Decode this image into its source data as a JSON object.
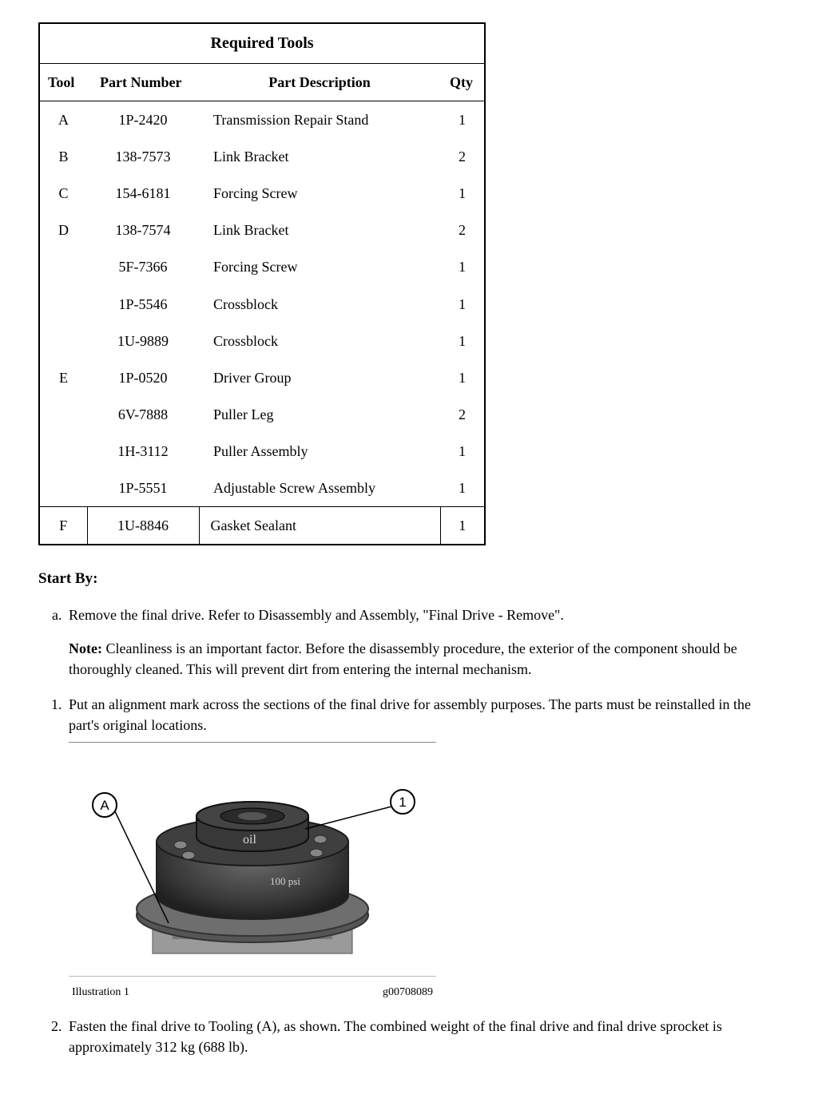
{
  "table": {
    "title": "Required Tools",
    "headers": {
      "tool": "Tool",
      "part_number": "Part Number",
      "part_description": "Part Description",
      "qty": "Qty"
    },
    "rows": [
      {
        "tool": "A",
        "pn": "1P-2420",
        "desc": "Transmission Repair Stand",
        "qty": "1"
      },
      {
        "tool": "B",
        "pn": "138-7573",
        "desc": "Link Bracket",
        "qty": "2"
      },
      {
        "tool": "C",
        "pn": "154-6181",
        "desc": "Forcing Screw",
        "qty": "1"
      },
      {
        "tool": "D",
        "pn": "138-7574",
        "desc": "Link Bracket",
        "qty": "2"
      },
      {
        "tool": "",
        "pn": "5F-7366",
        "desc": "Forcing Screw",
        "qty": "1"
      },
      {
        "tool": "",
        "pn": "1P-5546",
        "desc": "Crossblock",
        "qty": "1"
      },
      {
        "tool": "",
        "pn": "1U-9889",
        "desc": "Crossblock",
        "qty": "1"
      },
      {
        "tool": "E",
        "pn": "1P-0520",
        "desc": "Driver Group",
        "qty": "1"
      },
      {
        "tool": "",
        "pn": "6V-7888",
        "desc": "Puller Leg",
        "qty": "2"
      },
      {
        "tool": "",
        "pn": "1H-3112",
        "desc": "Puller Assembly",
        "qty": "1"
      },
      {
        "tool": "",
        "pn": "1P-5551",
        "desc": "Adjustable Screw Assembly",
        "qty": "1"
      }
    ],
    "last_row": {
      "tool": "F",
      "pn": "1U-8846",
      "desc": "Gasket Sealant",
      "qty": "1"
    }
  },
  "start_by": "Start By:",
  "step_a": "Remove the final drive. Refer to Disassembly and Assembly, \"Final Drive - Remove\".",
  "note_label": "Note:",
  "note_body": " Cleanliness is an important factor. Before the disassembly procedure, the exterior of the component should be thoroughly cleaned. This will prevent dirt from entering the internal mechanism.",
  "step_1": "Put an alignment mark across the sections of the final drive for assembly purposes. The parts must be reinstalled in the part's original locations.",
  "illustration": {
    "label": "Illustration 1",
    "code": "g00708089",
    "callout_a": "A",
    "callout_1": "1"
  },
  "step_2": "Fasten the final drive to Tooling (A), as shown. The combined weight of the final drive and final drive sprocket is approximately 312 kg (688 lb)."
}
